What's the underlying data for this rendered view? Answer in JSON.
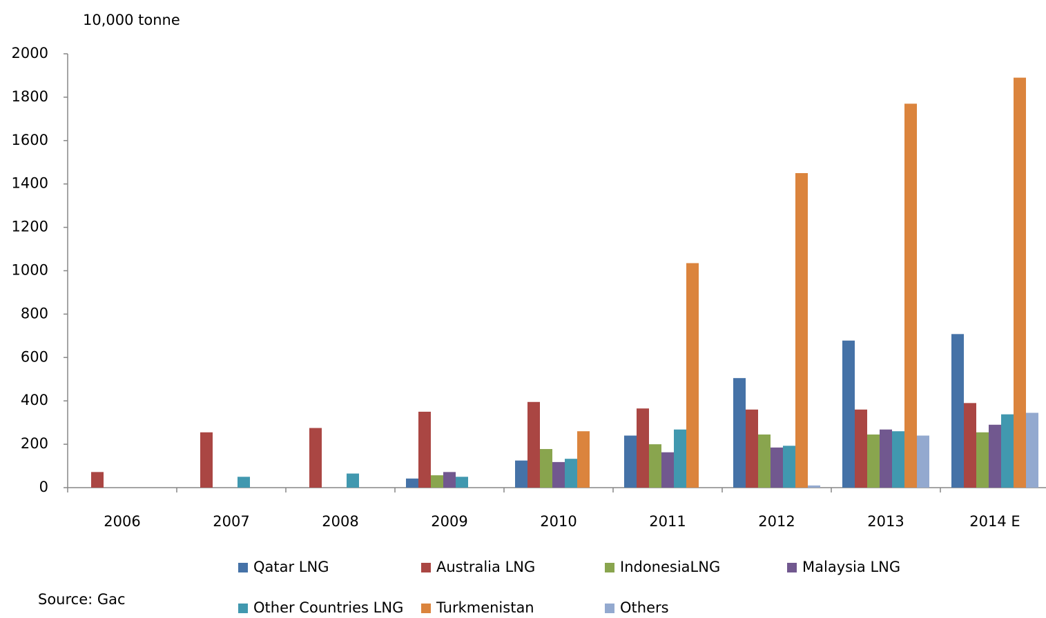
{
  "chart_data": {
    "type": "bar",
    "y_axis_label": "10,000 tonne",
    "source": "Source: Gac",
    "categories": [
      "2006",
      "2007",
      "2008",
      "2009",
      "2010",
      "2011",
      "2012",
      "2013",
      "2014 E"
    ],
    "series": [
      {
        "name": "Qatar LNG",
        "color": "#4572a7",
        "values": [
          0,
          0,
          0,
          42,
          125,
          240,
          505,
          678,
          708
        ]
      },
      {
        "name": "Australia LNG",
        "color": "#aa4643",
        "values": [
          72,
          255,
          275,
          350,
          395,
          365,
          360,
          360,
          390
        ]
      },
      {
        "name": "IndonesiaLNG",
        "color": "#89a54e",
        "values": [
          0,
          0,
          0,
          57,
          178,
          200,
          245,
          245,
          255
        ]
      },
      {
        "name": "Malaysia  LNG",
        "color": "#71588f",
        "values": [
          0,
          0,
          0,
          72,
          118,
          163,
          185,
          268,
          290
        ]
      },
      {
        "name": "Other Countries LNG",
        "color": "#4198af",
        "values": [
          0,
          50,
          65,
          50,
          133,
          268,
          193,
          260,
          338
        ]
      },
      {
        "name": "Turkmenistan",
        "color": "#db843d",
        "values": [
          0,
          0,
          0,
          0,
          260,
          1035,
          1450,
          1770,
          1890
        ]
      },
      {
        "name": "Others",
        "color": "#93a9cf",
        "values": [
          0,
          0,
          0,
          0,
          0,
          0,
          10,
          240,
          345
        ]
      }
    ],
    "ylim": [
      0,
      2000
    ],
    "yticks": [
      0,
      200,
      400,
      600,
      800,
      1000,
      1200,
      1400,
      1600,
      1800,
      2000
    ],
    "grid": false,
    "legend": "bottom"
  }
}
